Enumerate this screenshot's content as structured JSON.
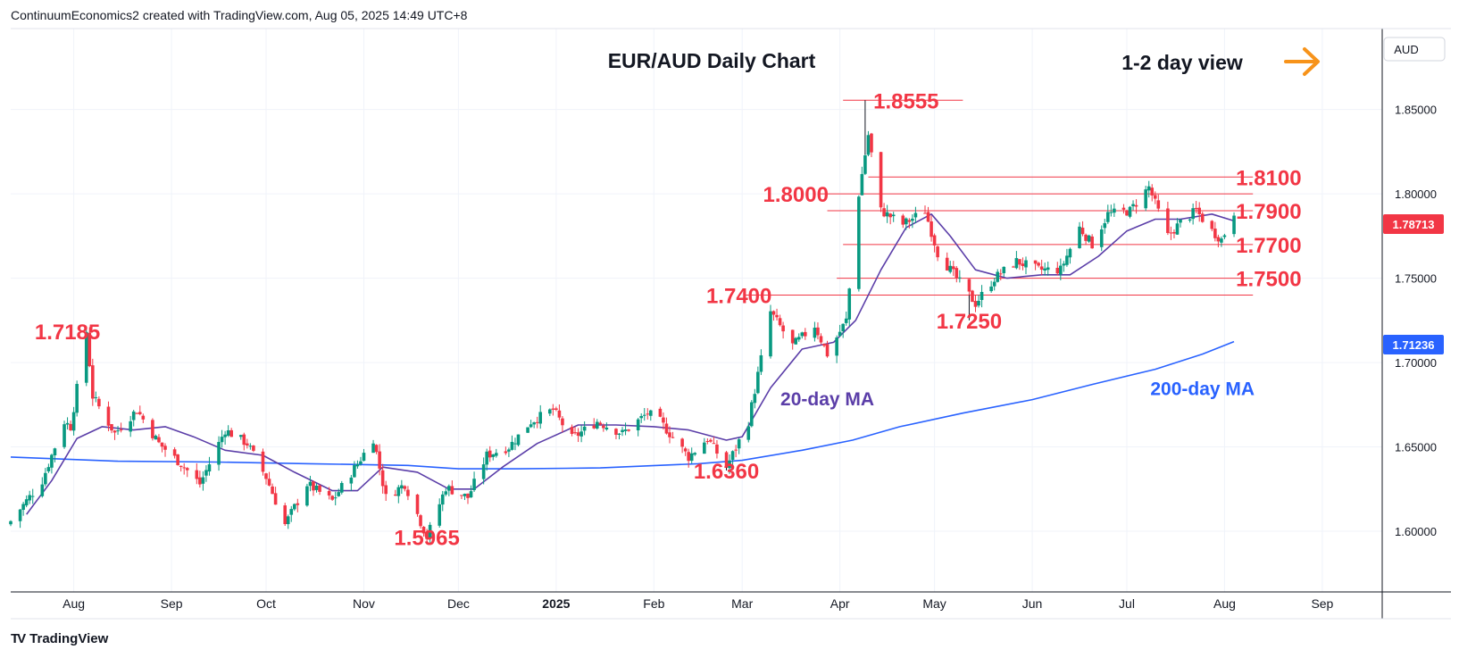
{
  "header": {
    "attribution": "ContinuumEconomics2 created with TradingView.com, Aug 05, 2025 14:49 UTC+8"
  },
  "footer": {
    "logo_mark": "TV",
    "brand": "TradingView"
  },
  "colors": {
    "up_candle": "#089981",
    "down_candle": "#f23645",
    "ma20": "#5b3ea8",
    "ma200": "#2962ff",
    "level_line": "#f23645",
    "annotation": "#f23645",
    "arrow": "#f7931a"
  },
  "chart_data": {
    "type": "candlestick",
    "title": "EUR/AUD Daily Chart",
    "view_label": "1-2 day view",
    "view_arrow": "right",
    "currency_label": "AUD",
    "last_price": "1.78713",
    "ma200_label": "1.71236",
    "y_axis": {
      "ticks": [
        "1.85000",
        "1.80000",
        "1.75000",
        "1.70000",
        "1.65000",
        "1.60000"
      ],
      "range": [
        1.564,
        1.898
      ]
    },
    "x_axis": {
      "ticks": [
        "Aug",
        "Sep",
        "Oct",
        "Nov",
        "Dec",
        "2025",
        "Feb",
        "Mar",
        "Apr",
        "May",
        "Jun",
        "Jul",
        "Aug",
        "Sep"
      ],
      "tick_dates": [
        "2024-08-01",
        "2024-09-01",
        "2024-10-01",
        "2024-11-01",
        "2024-12-01",
        "2025-01-01",
        "2025-02-01",
        "2025-03-01",
        "2025-04-01",
        "2025-05-01",
        "2025-06-01",
        "2025-07-01",
        "2025-08-01",
        "2025-09-01"
      ],
      "range": [
        "2024-07-12",
        "2025-09-20"
      ]
    },
    "grid": true,
    "annotations": [
      {
        "text": "1.8555",
        "date": "2025-04-22",
        "price": 1.8555
      },
      {
        "text": "1.8100",
        "date": "2025-08-15",
        "price": 1.81
      },
      {
        "text": "1.8000",
        "date": "2025-03-18",
        "price": 1.8
      },
      {
        "text": "1.7900",
        "date": "2025-08-15",
        "price": 1.79
      },
      {
        "text": "1.7700",
        "date": "2025-08-15",
        "price": 1.77
      },
      {
        "text": "1.7500",
        "date": "2025-08-15",
        "price": 1.75
      },
      {
        "text": "1.7400",
        "date": "2025-02-28",
        "price": 1.74
      },
      {
        "text": "1.7250",
        "date": "2025-05-12",
        "price": 1.725
      },
      {
        "text": "1.7185",
        "date": "2024-07-30",
        "price": 1.7185
      },
      {
        "text": "1.6360",
        "date": "2025-02-24",
        "price": 1.636
      },
      {
        "text": "1.5965",
        "date": "2024-11-21",
        "price": 1.5965
      },
      {
        "text": "20-day MA",
        "date": "2025-03-28",
        "price": 1.6795
      },
      {
        "text": "200-day MA",
        "date": "2025-07-25",
        "price": 1.6855
      }
    ],
    "levels": [
      {
        "price": 1.8555,
        "from": "2025-04-02",
        "to": "2025-05-10"
      },
      {
        "price": 1.81,
        "from": "2025-04-10",
        "to": "2025-08-10"
      },
      {
        "price": 1.8,
        "from": "2025-03-25",
        "to": "2025-08-10"
      },
      {
        "price": 1.79,
        "from": "2025-03-28",
        "to": "2025-08-10"
      },
      {
        "price": 1.77,
        "from": "2025-04-02",
        "to": "2025-08-10"
      },
      {
        "price": 1.75,
        "from": "2025-03-31",
        "to": "2025-08-10"
      },
      {
        "price": 1.74,
        "from": "2025-03-02",
        "to": "2025-08-10"
      }
    ],
    "anchors": [
      [
        "2024-07-12",
        1.606
      ],
      [
        "2024-07-22",
        1.63
      ],
      [
        "2024-07-29",
        1.665
      ],
      [
        "2024-07-31",
        1.662
      ],
      [
        "2024-08-05",
        1.7185
      ],
      [
        "2024-08-07",
        1.68
      ],
      [
        "2024-08-14",
        1.658
      ],
      [
        "2024-08-21",
        1.672
      ],
      [
        "2024-08-28",
        1.652
      ],
      [
        "2024-09-04",
        1.64
      ],
      [
        "2024-09-10",
        1.628
      ],
      [
        "2024-09-18",
        1.66
      ],
      [
        "2024-09-25",
        1.652
      ],
      [
        "2024-10-01",
        1.632
      ],
      [
        "2024-10-07",
        1.604
      ],
      [
        "2024-10-14",
        1.628
      ],
      [
        "2024-10-22",
        1.618
      ],
      [
        "2024-10-30",
        1.64
      ],
      [
        "2024-11-04",
        1.655
      ],
      [
        "2024-11-08",
        1.62
      ],
      [
        "2024-11-14",
        1.628
      ],
      [
        "2024-11-21",
        1.5965
      ],
      [
        "2024-11-27",
        1.626
      ],
      [
        "2024-12-04",
        1.62
      ],
      [
        "2024-12-10",
        1.645
      ],
      [
        "2024-12-17",
        1.65
      ],
      [
        "2024-12-24",
        1.665
      ],
      [
        "2024-12-31",
        1.672
      ],
      [
        "2025-01-06",
        1.655
      ],
      [
        "2025-01-14",
        1.665
      ],
      [
        "2025-01-22",
        1.658
      ],
      [
        "2025-01-30",
        1.67
      ],
      [
        "2025-02-03",
        1.665
      ],
      [
        "2025-02-12",
        1.644
      ],
      [
        "2025-02-18",
        1.655
      ],
      [
        "2025-02-24",
        1.638
      ],
      [
        "2025-03-03",
        1.665
      ],
      [
        "2025-03-10",
        1.73
      ],
      [
        "2025-03-17",
        1.71
      ],
      [
        "2025-03-24",
        1.722
      ],
      [
        "2025-03-28",
        1.705
      ],
      [
        "2025-04-03",
        1.725
      ],
      [
        "2025-04-07",
        1.8
      ],
      [
        "2025-04-10",
        1.835
      ],
      [
        "2025-04-14",
        1.79
      ],
      [
        "2025-04-21",
        1.782
      ],
      [
        "2025-04-28",
        1.79
      ],
      [
        "2025-05-02",
        1.765
      ],
      [
        "2025-05-08",
        1.75
      ],
      [
        "2025-05-14",
        1.735
      ],
      [
        "2025-05-20",
        1.75
      ],
      [
        "2025-05-27",
        1.76
      ],
      [
        "2025-06-03",
        1.755
      ],
      [
        "2025-06-10",
        1.755
      ],
      [
        "2025-06-16",
        1.78
      ],
      [
        "2025-06-20",
        1.77
      ],
      [
        "2025-06-25",
        1.788
      ],
      [
        "2025-07-02",
        1.79
      ],
      [
        "2025-07-08",
        1.804
      ],
      [
        "2025-07-14",
        1.775
      ],
      [
        "2025-07-18",
        1.783
      ],
      [
        "2025-07-23",
        1.79
      ],
      [
        "2025-07-28",
        1.778
      ],
      [
        "2025-07-31",
        1.773
      ],
      [
        "2025-08-04",
        1.7871
      ]
    ],
    "ma20": [
      [
        "2024-07-17",
        1.61
      ],
      [
        "2024-07-25",
        1.63
      ],
      [
        "2024-08-02",
        1.655
      ],
      [
        "2024-08-10",
        1.662
      ],
      [
        "2024-08-20",
        1.66
      ],
      [
        "2024-08-30",
        1.662
      ],
      [
        "2024-09-08",
        1.656
      ],
      [
        "2024-09-18",
        1.648
      ],
      [
        "2024-09-30",
        1.645
      ],
      [
        "2024-10-10",
        1.635
      ],
      [
        "2024-10-22",
        1.624
      ],
      [
        "2024-10-30",
        1.624
      ],
      [
        "2024-11-07",
        1.638
      ],
      [
        "2024-11-18",
        1.635
      ],
      [
        "2024-11-28",
        1.625
      ],
      [
        "2024-12-06",
        1.625
      ],
      [
        "2024-12-15",
        1.638
      ],
      [
        "2024-12-26",
        1.652
      ],
      [
        "2025-01-08",
        1.663
      ],
      [
        "2025-01-20",
        1.663
      ],
      [
        "2025-02-01",
        1.662
      ],
      [
        "2025-02-12",
        1.66
      ],
      [
        "2025-02-24",
        1.654
      ],
      [
        "2025-03-01",
        1.656
      ],
      [
        "2025-03-10",
        1.685
      ],
      [
        "2025-03-20",
        1.708
      ],
      [
        "2025-03-30",
        1.712
      ],
      [
        "2025-04-06",
        1.725
      ],
      [
        "2025-04-14",
        1.755
      ],
      [
        "2025-04-22",
        1.78
      ],
      [
        "2025-04-30",
        1.788
      ],
      [
        "2025-05-06",
        1.775
      ],
      [
        "2025-05-14",
        1.755
      ],
      [
        "2025-05-24",
        1.75
      ],
      [
        "2025-06-04",
        1.752
      ],
      [
        "2025-06-13",
        1.752
      ],
      [
        "2025-06-22",
        1.763
      ],
      [
        "2025-07-01",
        1.778
      ],
      [
        "2025-07-10",
        1.785
      ],
      [
        "2025-07-18",
        1.785
      ],
      [
        "2025-07-28",
        1.788
      ],
      [
        "2025-08-04",
        1.784
      ]
    ],
    "ma200": [
      [
        "2024-07-12",
        1.644
      ],
      [
        "2024-08-15",
        1.6415
      ],
      [
        "2024-09-15",
        1.641
      ],
      [
        "2024-10-15",
        1.64
      ],
      [
        "2024-11-15",
        1.639
      ],
      [
        "2024-12-01",
        1.637
      ],
      [
        "2024-12-20",
        1.637
      ],
      [
        "2025-01-15",
        1.6375
      ],
      [
        "2025-02-15",
        1.64
      ],
      [
        "2025-03-01",
        1.642
      ],
      [
        "2025-03-20",
        1.648
      ],
      [
        "2025-04-05",
        1.654
      ],
      [
        "2025-04-20",
        1.662
      ],
      [
        "2025-05-10",
        1.67
      ],
      [
        "2025-06-01",
        1.678
      ],
      [
        "2025-06-20",
        1.687
      ],
      [
        "2025-07-10",
        1.696
      ],
      [
        "2025-07-25",
        1.705
      ],
      [
        "2025-08-04",
        1.7124
      ]
    ]
  }
}
